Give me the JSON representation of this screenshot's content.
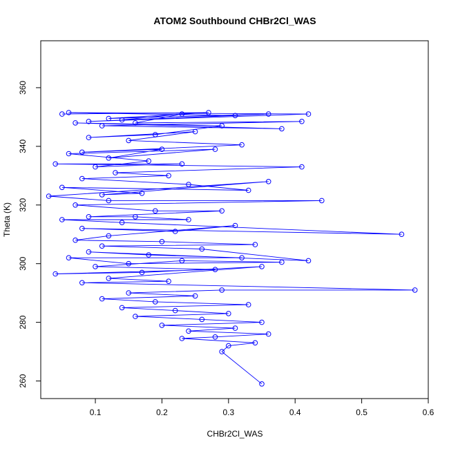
{
  "chart_data": {
    "type": "scatter",
    "connected": true,
    "title": "ATOM2 Southbound CHBr2Cl_WAS",
    "xlabel": "CHBr2Cl_WAS",
    "ylabel": "Theta (K)",
    "xlim": [
      0.018,
      0.6
    ],
    "ylim": [
      254,
      376
    ],
    "xticks": [
      0.1,
      0.2,
      0.3,
      0.4,
      0.5,
      0.6
    ],
    "yticks": [
      260,
      280,
      300,
      320,
      340,
      360
    ],
    "grid": false,
    "color": "#0000ff",
    "series": [
      {
        "points": [
          [
            0.05,
            351
          ],
          [
            0.27,
            351.5
          ],
          [
            0.12,
            349.5
          ],
          [
            0.36,
            351
          ],
          [
            0.09,
            348.5
          ],
          [
            0.42,
            351
          ],
          [
            0.06,
            351.5
          ],
          [
            0.31,
            350.5
          ],
          [
            0.14,
            349
          ],
          [
            0.23,
            351
          ],
          [
            0.16,
            348
          ],
          [
            0.41,
            348.5
          ],
          [
            0.11,
            347
          ],
          [
            0.38,
            346
          ],
          [
            0.07,
            348
          ],
          [
            0.29,
            347
          ],
          [
            0.19,
            344
          ],
          [
            0.09,
            343
          ],
          [
            0.25,
            345
          ],
          [
            0.15,
            342
          ],
          [
            0.32,
            340.5
          ],
          [
            0.08,
            338
          ],
          [
            0.2,
            339
          ],
          [
            0.12,
            336
          ],
          [
            0.28,
            339
          ],
          [
            0.06,
            337.5
          ],
          [
            0.18,
            335
          ],
          [
            0.1,
            333
          ],
          [
            0.23,
            334
          ],
          [
            0.04,
            334
          ],
          [
            0.41,
            333
          ],
          [
            0.13,
            331
          ],
          [
            0.21,
            330
          ],
          [
            0.08,
            329
          ],
          [
            0.24,
            327
          ],
          [
            0.33,
            325
          ],
          [
            0.05,
            326
          ],
          [
            0.17,
            324
          ],
          [
            0.11,
            323.5
          ],
          [
            0.36,
            328
          ],
          [
            0.03,
            323
          ],
          [
            0.12,
            321.5
          ],
          [
            0.44,
            321.5
          ],
          [
            0.07,
            320
          ],
          [
            0.19,
            318
          ],
          [
            0.29,
            318
          ],
          [
            0.09,
            316
          ],
          [
            0.16,
            316
          ],
          [
            0.24,
            315
          ],
          [
            0.05,
            315
          ],
          [
            0.14,
            314
          ],
          [
            0.56,
            310
          ],
          [
            0.08,
            312
          ],
          [
            0.22,
            311
          ],
          [
            0.31,
            313
          ],
          [
            0.12,
            309.5
          ],
          [
            0.07,
            308
          ],
          [
            0.2,
            307.5
          ],
          [
            0.34,
            306.5
          ],
          [
            0.11,
            306
          ],
          [
            0.26,
            305
          ],
          [
            0.42,
            301
          ],
          [
            0.09,
            304
          ],
          [
            0.18,
            303
          ],
          [
            0.32,
            302
          ],
          [
            0.06,
            302
          ],
          [
            0.15,
            300
          ],
          [
            0.38,
            300.5
          ],
          [
            0.23,
            301
          ],
          [
            0.1,
            299
          ],
          [
            0.28,
            298
          ],
          [
            0.04,
            296.5
          ],
          [
            0.17,
            297
          ],
          [
            0.35,
            299
          ],
          [
            0.12,
            295
          ],
          [
            0.21,
            294
          ],
          [
            0.08,
            293.5
          ],
          [
            0.58,
            291
          ],
          [
            0.29,
            291
          ],
          [
            0.15,
            290
          ],
          [
            0.25,
            289
          ],
          [
            0.11,
            288
          ],
          [
            0.19,
            287
          ],
          [
            0.33,
            286
          ],
          [
            0.14,
            285
          ],
          [
            0.22,
            284
          ],
          [
            0.3,
            283
          ],
          [
            0.16,
            282
          ],
          [
            0.26,
            281
          ],
          [
            0.35,
            280
          ],
          [
            0.2,
            279
          ],
          [
            0.31,
            278
          ],
          [
            0.24,
            277
          ],
          [
            0.36,
            276
          ],
          [
            0.28,
            275
          ],
          [
            0.23,
            274.5
          ],
          [
            0.34,
            273
          ],
          [
            0.3,
            272
          ],
          [
            0.29,
            270
          ],
          [
            0.35,
            259
          ]
        ]
      }
    ]
  }
}
